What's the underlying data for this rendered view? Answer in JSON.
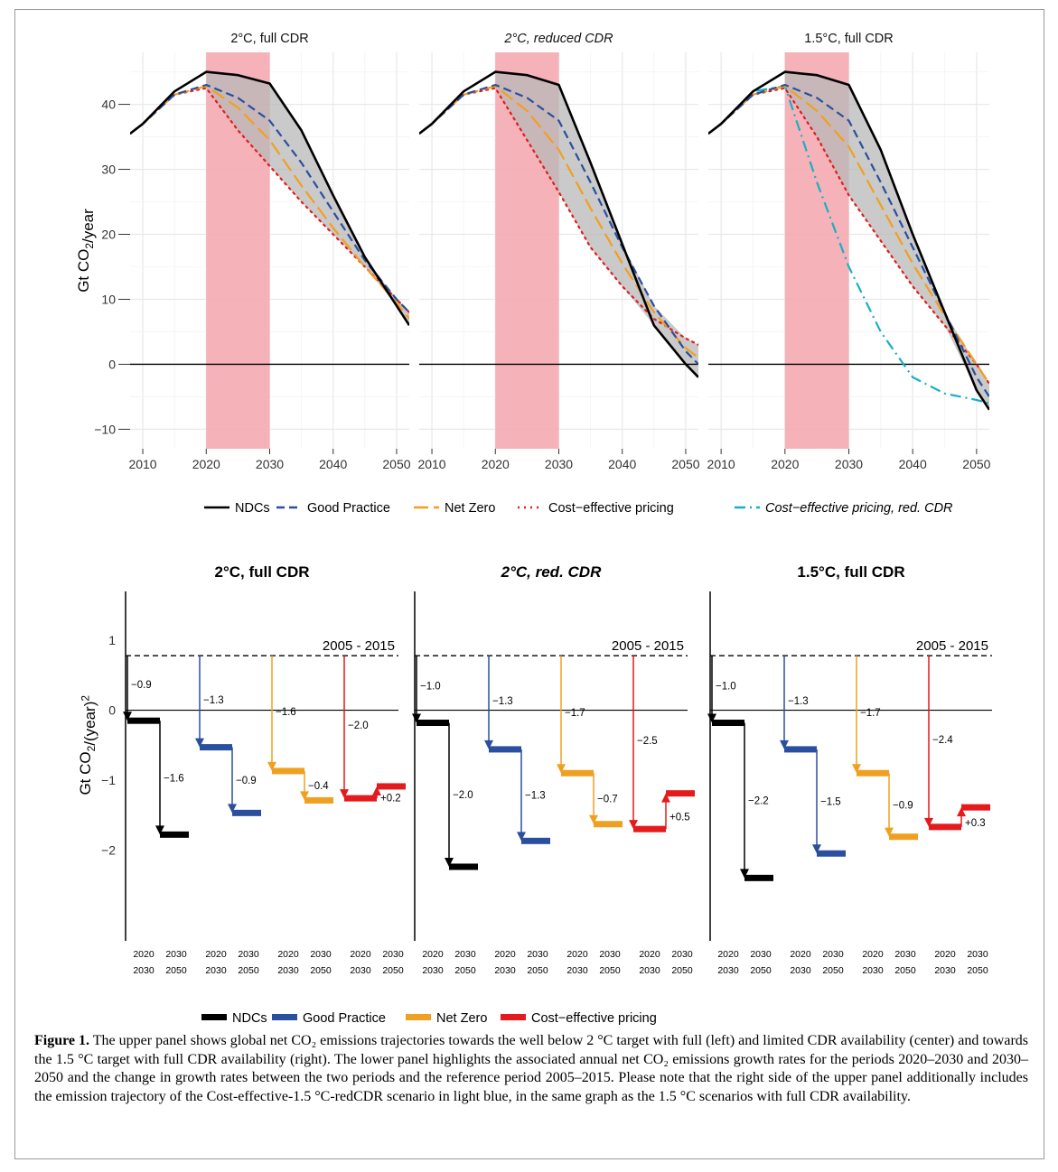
{
  "figure": {
    "caption_label": "Figure 1.",
    "caption_text": "The upper panel shows global net CO₂ emissions trajectories towards the well below 2 °C target with full (left) and limited CDR availability (center) and towards the 1.5 °C target with full CDR availability (right). The lower panel highlights the associated annual net CO₂ emissions growth rates for the periods 2020–2030 and 2030–2050 and the change in growth rates between the two periods and the reference period 2005–2015. Please note that the right side of the upper panel additionally includes the emission trajectory of the Cost-effective-1.5 °C-redCDR scenario in light blue, in the same graph as the 1.5 °C scenarios with full CDR availability."
  },
  "colors": {
    "NDCs": "#000000",
    "Good Practice": "#2a4f9e",
    "Net Zero": "#f0a020",
    "Cost-effective pricing": "#e41a1c",
    "Cost-effective pricing, red. CDR": "#1aaec6",
    "highlight": "#f4a5ad",
    "range_fill": "#b8b8b8"
  },
  "chart_data": [
    {
      "type": "line",
      "ylabel": "Gt CO₂/year",
      "ylim": [
        -13,
        48
      ],
      "xlim": [
        2008,
        2052
      ],
      "xticks": [
        "2010",
        "2020",
        "2030",
        "2040",
        "2050"
      ],
      "yticks": [
        "−10",
        "0",
        "10",
        "20",
        "30",
        "40"
      ],
      "highlight_period": [
        2020,
        2030
      ],
      "grid": true,
      "legend": [
        "NDCs",
        "Good Practice",
        "Net Zero",
        "Cost−effective pricing",
        "Cost−effective pricing, red. CDR"
      ],
      "panels": [
        {
          "title": "2°C, full CDR",
          "italic": false,
          "series": [
            {
              "name": "NDCs",
              "x": [
                2008,
                2010,
                2015,
                2020,
                2025,
                2030,
                2035,
                2040,
                2045,
                2050,
                2052
              ],
              "y": [
                35.5,
                37,
                42,
                45,
                44.5,
                43.2,
                36,
                26,
                16.5,
                9,
                6
              ]
            },
            {
              "name": "Good Practice",
              "x": [
                2008,
                2010,
                2015,
                2020,
                2025,
                2030,
                2035,
                2040,
                2045,
                2050,
                2052
              ],
              "y": [
                35.5,
                37,
                41.5,
                43,
                41,
                37.5,
                31,
                23.5,
                16,
                10,
                8
              ]
            },
            {
              "name": "Net Zero",
              "x": [
                2008,
                2010,
                2015,
                2020,
                2025,
                2030,
                2035,
                2040,
                2045,
                2050,
                2052
              ],
              "y": [
                35.5,
                37,
                41.5,
                42.8,
                39.5,
                34.5,
                27.5,
                21,
                15,
                9.5,
                7
              ]
            },
            {
              "name": "Cost−effective pricing",
              "x": [
                2008,
                2010,
                2015,
                2020,
                2025,
                2030,
                2035,
                2040,
                2045,
                2050,
                2052
              ],
              "y": [
                35.5,
                37,
                41.5,
                42.5,
                36,
                30.5,
                25,
                20,
                15,
                10,
                8
              ]
            }
          ]
        },
        {
          "title": "2°C, reduced CDR",
          "italic": true,
          "series": [
            {
              "name": "NDCs",
              "x": [
                2008,
                2010,
                2015,
                2020,
                2025,
                2030,
                2035,
                2040,
                2045,
                2050,
                2052
              ],
              "y": [
                35.5,
                37,
                42,
                45,
                44.5,
                43,
                31,
                18.5,
                6,
                0,
                -2
              ]
            },
            {
              "name": "Good Practice",
              "x": [
                2008,
                2010,
                2015,
                2020,
                2025,
                2030,
                2035,
                2040,
                2045,
                2050,
                2052
              ],
              "y": [
                35.5,
                37,
                41.5,
                43,
                41,
                37.5,
                28,
                18,
                9,
                2,
                0
              ]
            },
            {
              "name": "Net Zero",
              "x": [
                2008,
                2010,
                2015,
                2020,
                2025,
                2030,
                2035,
                2040,
                2045,
                2050,
                2052
              ],
              "y": [
                35.5,
                37,
                41.5,
                42.8,
                39,
                33,
                24,
                15.5,
                8,
                2.5,
                1
              ]
            },
            {
              "name": "Cost−effective pricing",
              "x": [
                2008,
                2010,
                2015,
                2020,
                2025,
                2030,
                2035,
                2040,
                2045,
                2050,
                2052
              ],
              "y": [
                35.5,
                37,
                41.5,
                42.5,
                34.5,
                26.5,
                18,
                12,
                7,
                4,
                3
              ]
            }
          ]
        },
        {
          "title": "1.5°C, full CDR",
          "italic": false,
          "series": [
            {
              "name": "NDCs",
              "x": [
                2008,
                2010,
                2015,
                2020,
                2025,
                2030,
                2035,
                2040,
                2045,
                2050,
                2052
              ],
              "y": [
                35.5,
                37,
                42,
                45,
                44.5,
                43,
                33,
                20,
                8,
                -4,
                -7
              ]
            },
            {
              "name": "Good Practice",
              "x": [
                2008,
                2010,
                2015,
                2020,
                2025,
                2030,
                2035,
                2040,
                2045,
                2050,
                2052
              ],
              "y": [
                35.5,
                37,
                41.5,
                43,
                41,
                37.5,
                28,
                18,
                8,
                -2,
                -5
              ]
            },
            {
              "name": "Net Zero",
              "x": [
                2008,
                2010,
                2015,
                2020,
                2025,
                2030,
                2035,
                2040,
                2045,
                2050,
                2052
              ],
              "y": [
                35.5,
                37,
                41.5,
                42.8,
                39,
                33.5,
                24.5,
                15.5,
                7.5,
                0,
                -3
              ]
            },
            {
              "name": "Cost−effective pricing",
              "x": [
                2008,
                2010,
                2015,
                2020,
                2025,
                2030,
                2035,
                2040,
                2045,
                2050,
                2052
              ],
              "y": [
                35.5,
                37,
                41.5,
                42.5,
                35,
                26,
                19,
                12,
                6,
                0,
                -3
              ]
            },
            {
              "name": "Cost−effective pricing, red. CDR",
              "x": [
                2008,
                2010,
                2015,
                2020,
                2025,
                2030,
                2035,
                2040,
                2045,
                2050,
                2052
              ],
              "y": [
                35.5,
                37,
                42,
                42.8,
                28,
                15,
                5,
                -2,
                -4.5,
                -5.5,
                -6
              ]
            }
          ]
        }
      ]
    },
    {
      "type": "bar",
      "ylabel": "Gt CO₂/(year)²",
      "ylim": [
        -3.3,
        1.7
      ],
      "yticks": [
        "−2",
        "−1",
        "0",
        "1"
      ],
      "reference_value": 0.78,
      "reference_label": "2005 - 2015",
      "period_labels": [
        [
          "2020",
          "2030"
        ],
        [
          "2030",
          "2050"
        ]
      ],
      "legend": [
        "NDCs",
        "Good Practice",
        "Net Zero",
        "Cost−effective pricing"
      ],
      "panels": [
        {
          "title": "2°C, full CDR",
          "italic": false,
          "scenarios": [
            {
              "name": "NDCs",
              "rate_2020_2030": -0.15,
              "rate_2030_2050": -1.78,
              "change_labels": [
                "−0.9",
                "−1.6"
              ]
            },
            {
              "name": "Good Practice",
              "rate_2020_2030": -0.53,
              "rate_2030_2050": -1.47,
              "change_labels": [
                "−1.3",
                "−0.9"
              ]
            },
            {
              "name": "Net Zero",
              "rate_2020_2030": -0.87,
              "rate_2030_2050": -1.29,
              "change_labels": [
                "−1.6",
                "−0.4"
              ]
            },
            {
              "name": "Cost−effective pricing",
              "rate_2020_2030": -1.26,
              "rate_2030_2050": -1.09,
              "change_labels": [
                "−2.0",
                "+0.2"
              ]
            }
          ]
        },
        {
          "title": "2°C, red. CDR",
          "italic": true,
          "scenarios": [
            {
              "name": "NDCs",
              "rate_2020_2030": -0.18,
              "rate_2030_2050": -2.24,
              "change_labels": [
                "−1.0",
                "−2.0"
              ]
            },
            {
              "name": "Good Practice",
              "rate_2020_2030": -0.56,
              "rate_2030_2050": -1.87,
              "change_labels": [
                "−1.3",
                "−1.3"
              ]
            },
            {
              "name": "Net Zero",
              "rate_2020_2030": -0.9,
              "rate_2030_2050": -1.63,
              "change_labels": [
                "−1.7",
                "−0.7"
              ]
            },
            {
              "name": "Cost−effective pricing",
              "rate_2020_2030": -1.7,
              "rate_2030_2050": -1.19,
              "change_labels": [
                "−2.5",
                "+0.5"
              ]
            }
          ]
        },
        {
          "title": "1.5°C, full CDR",
          "italic": false,
          "scenarios": [
            {
              "name": "NDCs",
              "rate_2020_2030": -0.18,
              "rate_2030_2050": -2.4,
              "change_labels": [
                "−1.0",
                "−2.2"
              ]
            },
            {
              "name": "Good Practice",
              "rate_2020_2030": -0.56,
              "rate_2030_2050": -2.05,
              "change_labels": [
                "−1.3",
                "−1.5"
              ]
            },
            {
              "name": "Net Zero",
              "rate_2020_2030": -0.9,
              "rate_2030_2050": -1.81,
              "change_labels": [
                "−1.7",
                "−0.9"
              ]
            },
            {
              "name": "Cost−effective pricing",
              "rate_2020_2030": -1.67,
              "rate_2030_2050": -1.39,
              "change_labels": [
                "−2.4",
                "+0.3"
              ]
            }
          ]
        }
      ]
    }
  ]
}
